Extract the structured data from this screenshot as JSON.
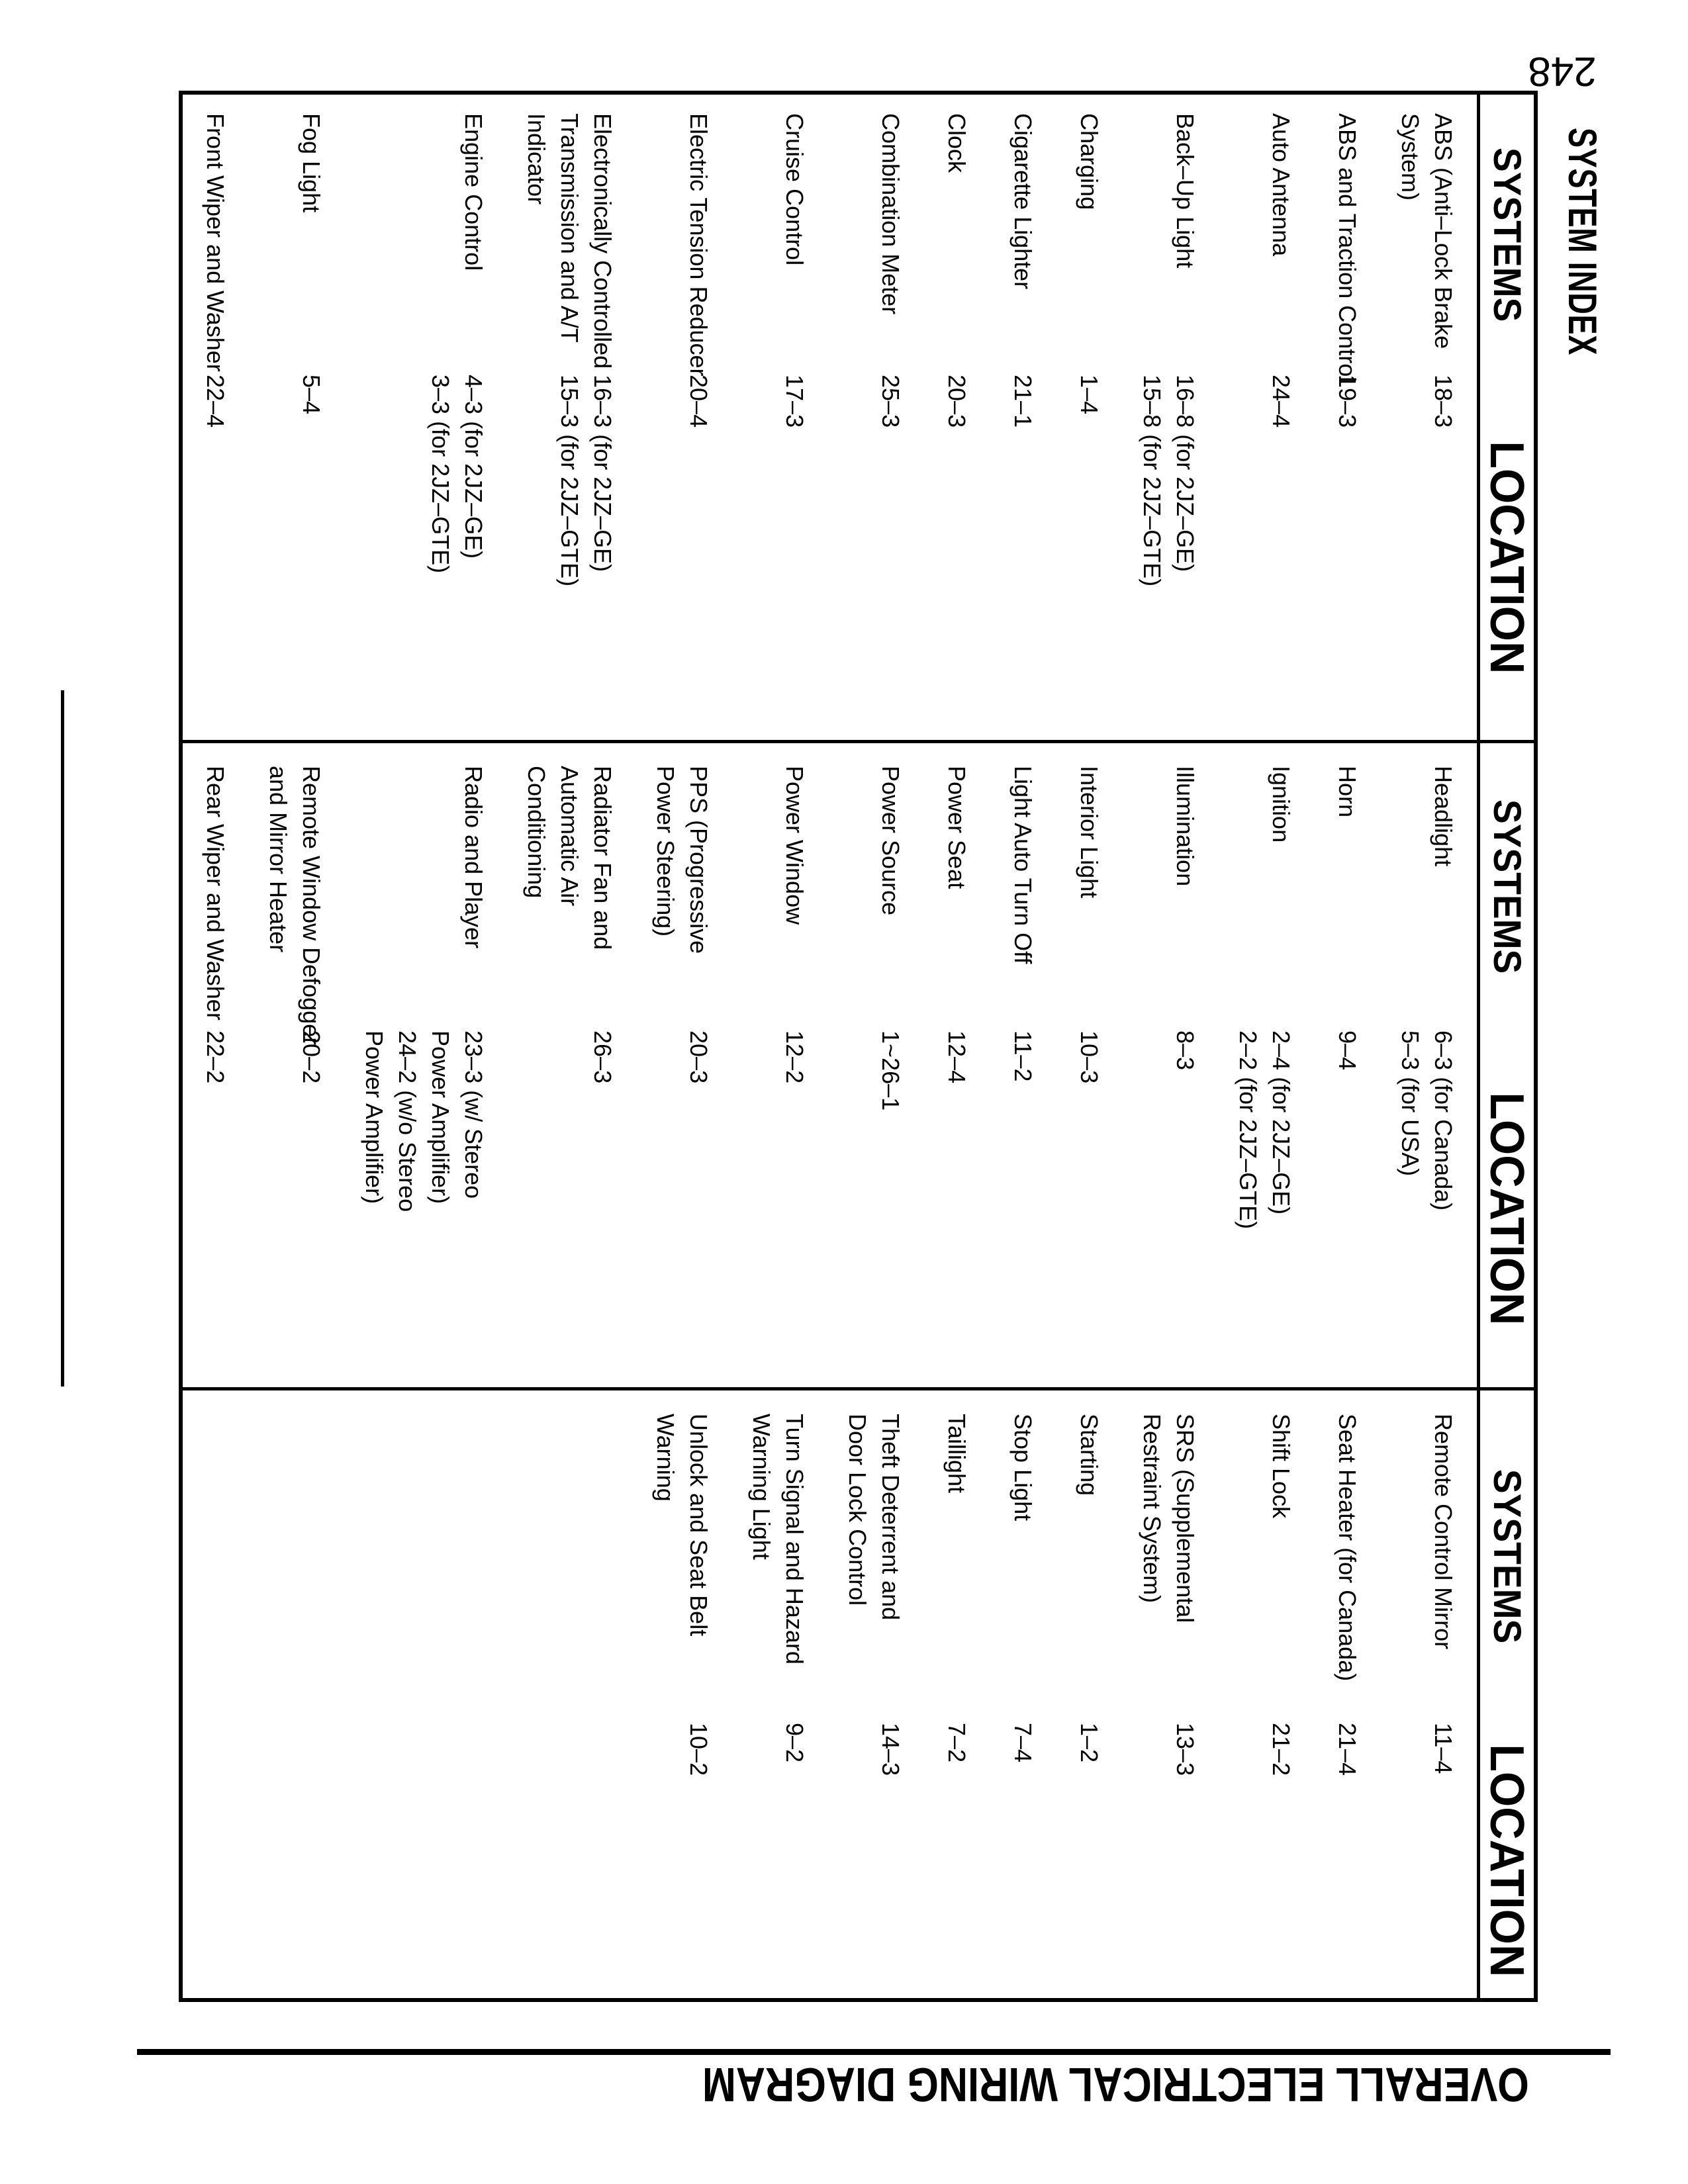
{
  "page": {
    "number": "248",
    "title": "SYSTEM INDEX",
    "footer": "OVERALL ELECTRICAL WIRING DIAGRAM"
  },
  "table": {
    "columns": [
      "SYSTEMS",
      "LOCATION",
      "SYSTEMS",
      "LOCATION",
      "SYSTEMS",
      "LOCATION"
    ],
    "rows": [
      [
        [
          "ABS (Anti–Lock Brake",
          "System)"
        ],
        [
          "18–3"
        ],
        [
          "Headlight"
        ],
        [
          "6–3 (for Canada)",
          "5–3 (for USA)"
        ],
        [
          "Remote Control Mirror"
        ],
        [
          "11–4"
        ]
      ],
      [
        [
          "ABS and Traction Control"
        ],
        [
          "19–3"
        ],
        [
          "Horn"
        ],
        [
          "9–4"
        ],
        [
          "Seat Heater (for Canada)"
        ],
        [
          "21–4"
        ]
      ],
      [
        [
          "Auto Antenna"
        ],
        [
          "24–4"
        ],
        [
          "Ignition"
        ],
        [
          "2–4 (for 2JZ–GE)",
          "2–2 (for 2JZ–GTE)"
        ],
        [
          "Shift Lock"
        ],
        [
          "21–2"
        ]
      ],
      [
        [
          "Back–Up Light"
        ],
        [
          "16–8 (for 2JZ–GE)",
          "15–8 (for 2JZ–GTE)"
        ],
        [
          "Illumination"
        ],
        [
          "8–3"
        ],
        [
          "SRS (Supplemental",
          "Restraint System)"
        ],
        [
          "13–3"
        ]
      ],
      [
        [
          "Charging"
        ],
        [
          "1–4"
        ],
        [
          "Interior Light"
        ],
        [
          "10–3"
        ],
        [
          "Starting"
        ],
        [
          "1–2"
        ]
      ],
      [
        [
          "Cigarette Lighter"
        ],
        [
          "21–1"
        ],
        [
          "Light Auto Turn Off"
        ],
        [
          "11–2"
        ],
        [
          "Stop Light"
        ],
        [
          "7–4"
        ]
      ],
      [
        [
          "Clock"
        ],
        [
          "20–3"
        ],
        [
          "Power Seat"
        ],
        [
          "12–4"
        ],
        [
          "Taillight"
        ],
        [
          "7–2"
        ]
      ],
      [
        [
          "Combination Meter"
        ],
        [
          "25–3"
        ],
        [
          "Power Source"
        ],
        [
          "1~26–1"
        ],
        [
          "Theft Deterrent and",
          "Door Lock Control"
        ],
        [
          "14–3"
        ]
      ],
      [
        [
          "Cruise Control"
        ],
        [
          "17–3"
        ],
        [
          "Power Window"
        ],
        [
          "12–2"
        ],
        [
          "Turn Signal and Hazard",
          "Warning Light"
        ],
        [
          "9–2"
        ]
      ],
      [
        [
          "Electric Tension Reducer"
        ],
        [
          "20–4"
        ],
        [
          "PPS (Progressive",
          "Power Steering)"
        ],
        [
          "20–3"
        ],
        [
          "Unlock and Seat Belt",
          "Warning"
        ],
        [
          "10–2"
        ]
      ],
      [
        [
          "Electronically Controlled",
          "Transmission and A/T",
          "Indicator"
        ],
        [
          "16–3 (for 2JZ–GE)",
          "15–3 (for 2JZ–GTE)"
        ],
        [
          "Radiator Fan and",
          "Automatic Air",
          "Conditioning"
        ],
        [
          "26–3"
        ],
        [],
        []
      ],
      [
        [
          "Engine Control"
        ],
        [
          "4–3 (for 2JZ–GE)",
          "3–3 (for 2JZ–GTE)"
        ],
        [
          "Radio and Player"
        ],
        [
          "23–3 (w/ Stereo",
          "Power Amplifier)",
          "24–2 (w/o Stereo",
          "Power Amplifier)"
        ],
        [],
        []
      ],
      [
        [
          "Fog Light"
        ],
        [
          "5–4"
        ],
        [
          "Remote Window Defogger",
          "and Mirror Heater"
        ],
        [
          "20–2"
        ],
        [],
        []
      ],
      [
        [
          "Front Wiper and Washer"
        ],
        [
          "22–4"
        ],
        [
          "Rear Wiper and Washer"
        ],
        [
          "22–2"
        ],
        [],
        []
      ]
    ]
  }
}
